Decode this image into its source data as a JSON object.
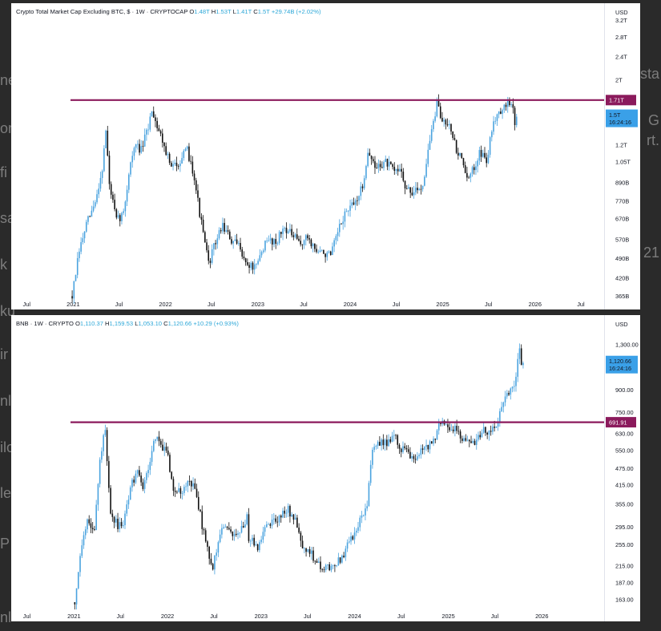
{
  "background_edge_text": [
    "ne",
    "or",
    "fi",
    "sa",
    "k",
    "ku",
    "ir",
    "nl",
    "ilo",
    "le",
    "P",
    "nl"
  ],
  "background_edge_text_right": [
    "sta",
    "G",
    "rt.",
    "21"
  ],
  "colors": {
    "level_line": "#8b1a5c",
    "candle_up": "#4aa3df",
    "candle_down": "#111111",
    "price_pill": "#3aa0e8"
  },
  "chart_data": [
    {
      "type": "candlestick",
      "legend": {
        "symbol": "Crypto Total Market Cap Excluding BTC, $ · 1W · CRYPTOCAP",
        "open_label": "O",
        "open": "1.48T",
        "high_label": "H",
        "high": "1.53T",
        "low_label": "L",
        "low": "1.41T",
        "close_label": "C",
        "close": "1.5T",
        "change": "+29.74B (+2.02%)"
      },
      "unit": "USD",
      "scale": "log",
      "ylim": [
        350000000000,
        3400000000000
      ],
      "y_ticks": [
        {
          "label": "3.2T",
          "value": 3200000000000
        },
        {
          "label": "2.8T",
          "value": 2800000000000
        },
        {
          "label": "2.4T",
          "value": 2400000000000
        },
        {
          "label": "2T",
          "value": 2000000000000
        },
        {
          "label": "1.2T",
          "value": 1200000000000
        },
        {
          "label": "1.05T",
          "value": 1050000000000
        },
        {
          "label": "890B",
          "value": 890000000000
        },
        {
          "label": "770B",
          "value": 770000000000
        },
        {
          "label": "670B",
          "value": 670000000000
        },
        {
          "label": "570B",
          "value": 570000000000
        },
        {
          "label": "490B",
          "value": 490000000000
        },
        {
          "label": "420B",
          "value": 420000000000
        },
        {
          "label": "365B",
          "value": 365000000000
        }
      ],
      "x_ticks": [
        {
          "label": "Jul",
          "date": "2020-07-01"
        },
        {
          "label": "2021",
          "date": "2021-01-01"
        },
        {
          "label": "Jul",
          "date": "2021-07-01"
        },
        {
          "label": "2022",
          "date": "2022-01-01"
        },
        {
          "label": "Jul",
          "date": "2022-07-01"
        },
        {
          "label": "2023",
          "date": "2023-01-01"
        },
        {
          "label": "Jul",
          "date": "2023-07-01"
        },
        {
          "label": "2024",
          "date": "2024-01-01"
        },
        {
          "label": "Jul",
          "date": "2024-07-01"
        },
        {
          "label": "2025",
          "date": "2025-01-01"
        },
        {
          "label": "Jul",
          "date": "2025-07-01"
        },
        {
          "label": "2026",
          "date": "2026-01-01"
        },
        {
          "label": "Jul",
          "date": "2026-07-01"
        }
      ],
      "xlim": [
        "2020-05-01",
        "2026-10-01"
      ],
      "level_line": {
        "label": "1.71T",
        "value": 1710000000000
      },
      "last_price": {
        "label": "1.5T",
        "countdown": "16:24:16",
        "value": 1500000000000
      },
      "path": [
        [
          "2020-12-28",
          365000000000
        ],
        [
          "2021-01-25",
          520000000000
        ],
        [
          "2021-02-22",
          640000000000
        ],
        [
          "2021-03-29",
          760000000000
        ],
        [
          "2021-04-26",
          1000000000000
        ],
        [
          "2021-05-10",
          1350000000000
        ],
        [
          "2021-05-24",
          880000000000
        ],
        [
          "2021-06-21",
          660000000000
        ],
        [
          "2021-07-19",
          700000000000
        ],
        [
          "2021-08-16",
          1060000000000
        ],
        [
          "2021-09-06",
          1200000000000
        ],
        [
          "2021-09-27",
          1150000000000
        ],
        [
          "2021-10-25",
          1380000000000
        ],
        [
          "2021-11-08",
          1600000000000
        ],
        [
          "2021-11-29",
          1400000000000
        ],
        [
          "2021-12-20",
          1250000000000
        ],
        [
          "2022-01-24",
          1000000000000
        ],
        [
          "2022-02-21",
          1050000000000
        ],
        [
          "2022-03-28",
          1150000000000
        ],
        [
          "2022-04-25",
          940000000000
        ],
        [
          "2022-05-16",
          700000000000
        ],
        [
          "2022-06-20",
          470000000000
        ],
        [
          "2022-07-18",
          560000000000
        ],
        [
          "2022-08-15",
          640000000000
        ],
        [
          "2022-09-19",
          560000000000
        ],
        [
          "2022-10-24",
          540000000000
        ],
        [
          "2022-11-14",
          470000000000
        ],
        [
          "2022-12-26",
          455000000000
        ],
        [
          "2023-01-23",
          540000000000
        ],
        [
          "2023-02-20",
          570000000000
        ],
        [
          "2023-03-13",
          560000000000
        ],
        [
          "2023-04-17",
          630000000000
        ],
        [
          "2023-05-15",
          590000000000
        ],
        [
          "2023-06-19",
          550000000000
        ],
        [
          "2023-07-17",
          580000000000
        ],
        [
          "2023-08-21",
          520000000000
        ],
        [
          "2023-09-25",
          510000000000
        ],
        [
          "2023-10-16",
          500000000000
        ],
        [
          "2023-11-13",
          600000000000
        ],
        [
          "2023-12-11",
          700000000000
        ],
        [
          "2024-01-15",
          750000000000
        ],
        [
          "2024-02-19",
          860000000000
        ],
        [
          "2024-03-11",
          1150000000000
        ],
        [
          "2024-04-08",
          1000000000000
        ],
        [
          "2024-05-20",
          1050000000000
        ],
        [
          "2024-06-24",
          970000000000
        ],
        [
          "2024-07-22",
          1000000000000
        ],
        [
          "2024-08-05",
          850000000000
        ],
        [
          "2024-09-09",
          820000000000
        ],
        [
          "2024-10-14",
          880000000000
        ],
        [
          "2024-11-11",
          1250000000000
        ],
        [
          "2024-12-09",
          1650000000000
        ],
        [
          "2024-12-30",
          1450000000000
        ],
        [
          "2025-01-27",
          1450000000000
        ],
        [
          "2025-02-24",
          1150000000000
        ],
        [
          "2025-03-24",
          1050000000000
        ],
        [
          "2025-04-07",
          900000000000
        ],
        [
          "2025-05-05",
          1000000000000
        ],
        [
          "2025-05-26",
          1150000000000
        ],
        [
          "2025-06-23",
          1050000000000
        ],
        [
          "2025-07-21",
          1450000000000
        ],
        [
          "2025-08-11",
          1600000000000
        ],
        [
          "2025-08-25",
          1550000000000
        ],
        [
          "2025-09-15",
          1700000000000
        ],
        [
          "2025-10-06",
          1600000000000
        ],
        [
          "2025-10-13",
          1420000000000
        ],
        [
          "2025-10-20",
          1500000000000
        ]
      ]
    },
    {
      "type": "candlestick",
      "legend": {
        "symbol": "BNB · 1W · CRYPTO",
        "open_label": "O",
        "open": "1,110.37",
        "high_label": "H",
        "high": "1,159.53",
        "low_label": "L",
        "low": "1,053.10",
        "close_label": "C",
        "close": "1,120.66",
        "change": "+10.29 (+0.93%)"
      },
      "unit": "USD",
      "scale": "log",
      "ylim": [
        148,
        1550
      ],
      "y_ticks": [
        {
          "label": "1,300.00",
          "value": 1300
        },
        {
          "label": "900.00",
          "value": 900
        },
        {
          "label": "750.00",
          "value": 750
        },
        {
          "label": "630.00",
          "value": 630
        },
        {
          "label": "550.00",
          "value": 550
        },
        {
          "label": "475.00",
          "value": 475
        },
        {
          "label": "415.00",
          "value": 415
        },
        {
          "label": "355.00",
          "value": 355
        },
        {
          "label": "295.00",
          "value": 295
        },
        {
          "label": "255.00",
          "value": 255
        },
        {
          "label": "215.00",
          "value": 215
        },
        {
          "label": "187.00",
          "value": 187
        },
        {
          "label": "163.00",
          "value": 163
        }
      ],
      "x_ticks": [
        {
          "label": "Jul",
          "date": "2020-07-01"
        },
        {
          "label": "2021",
          "date": "2021-01-01"
        },
        {
          "label": "Jul",
          "date": "2021-07-01"
        },
        {
          "label": "2022",
          "date": "2022-01-01"
        },
        {
          "label": "Jul",
          "date": "2022-07-01"
        },
        {
          "label": "2023",
          "date": "2023-01-01"
        },
        {
          "label": "Jul",
          "date": "2023-07-01"
        },
        {
          "label": "2024",
          "date": "2024-01-01"
        },
        {
          "label": "Jul",
          "date": "2024-07-01"
        },
        {
          "label": "2025",
          "date": "2025-01-01"
        },
        {
          "label": "Jul",
          "date": "2025-07-01"
        },
        {
          "label": "2026",
          "date": "2026-01-01"
        }
      ],
      "xlim": [
        "2020-05-01",
        "2026-09-01"
      ],
      "level_line": {
        "label": "691.91",
        "value": 691.91
      },
      "last_price": {
        "label": "1,120.66",
        "countdown": "16:24:16",
        "value": 1120.66
      },
      "path": [
        [
          "2021-01-04",
          160
        ],
        [
          "2021-02-01",
          260
        ],
        [
          "2021-02-22",
          320
        ],
        [
          "2021-03-22",
          280
        ],
        [
          "2021-04-12",
          520
        ],
        [
          "2021-05-03",
          650
        ],
        [
          "2021-05-24",
          330
        ],
        [
          "2021-06-21",
          300
        ],
        [
          "2021-07-12",
          310
        ],
        [
          "2021-08-09",
          400
        ],
        [
          "2021-09-06",
          480
        ],
        [
          "2021-09-27",
          410
        ],
        [
          "2021-10-25",
          500
        ],
        [
          "2021-11-15",
          620
        ],
        [
          "2021-12-06",
          580
        ],
        [
          "2022-01-03",
          520
        ],
        [
          "2022-01-24",
          400
        ],
        [
          "2022-02-21",
          390
        ],
        [
          "2022-03-28",
          440
        ],
        [
          "2022-04-25",
          380
        ],
        [
          "2022-05-16",
          300
        ],
        [
          "2022-06-13",
          230
        ],
        [
          "2022-06-27",
          215
        ],
        [
          "2022-07-25",
          280
        ],
        [
          "2022-08-22",
          290
        ],
        [
          "2022-09-19",
          280
        ],
        [
          "2022-10-24",
          290
        ],
        [
          "2022-11-07",
          330
        ],
        [
          "2022-11-14",
          270
        ],
        [
          "2022-12-19",
          250
        ],
        [
          "2023-01-23",
          300
        ],
        [
          "2023-02-20",
          310
        ],
        [
          "2023-03-13",
          320
        ],
        [
          "2023-04-17",
          340
        ],
        [
          "2023-05-15",
          310
        ],
        [
          "2023-06-12",
          240
        ],
        [
          "2023-07-10",
          240
        ],
        [
          "2023-08-21",
          215
        ],
        [
          "2023-09-25",
          210
        ],
        [
          "2023-10-23",
          220
        ],
        [
          "2023-11-13",
          230
        ],
        [
          "2023-12-11",
          260
        ],
        [
          "2024-01-15",
          300
        ],
        [
          "2024-02-19",
          360
        ],
        [
          "2024-03-11",
          560
        ],
        [
          "2024-04-08",
          590
        ],
        [
          "2024-05-20",
          590
        ],
        [
          "2024-06-10",
          620
        ],
        [
          "2024-06-24",
          560
        ],
        [
          "2024-07-22",
          560
        ],
        [
          "2024-08-05",
          510
        ],
        [
          "2024-09-09",
          540
        ],
        [
          "2024-10-14",
          570
        ],
        [
          "2024-11-11",
          600
        ],
        [
          "2024-12-02",
          700
        ],
        [
          "2024-12-30",
          660
        ],
        [
          "2025-01-27",
          660
        ],
        [
          "2025-02-24",
          600
        ],
        [
          "2025-03-24",
          600
        ],
        [
          "2025-04-14",
          580
        ],
        [
          "2025-05-12",
          650
        ],
        [
          "2025-06-09",
          640
        ],
        [
          "2025-07-07",
          680
        ],
        [
          "2025-07-28",
          780
        ],
        [
          "2025-08-18",
          850
        ],
        [
          "2025-09-08",
          900
        ],
        [
          "2025-09-22",
          1000
        ],
        [
          "2025-10-06",
          1300
        ],
        [
          "2025-10-13",
          1110
        ],
        [
          "2025-10-20",
          1120
        ]
      ]
    }
  ]
}
